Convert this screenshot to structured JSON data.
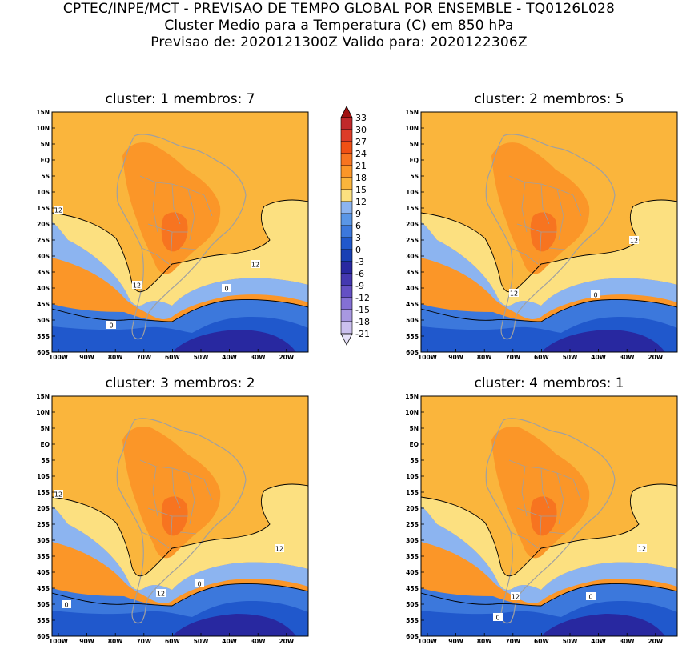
{
  "header": {
    "line1": "CPTEC/INPE/MCT - PREVISAO DE TEMPO GLOBAL POR ENSEMBLE - TQ0126L028",
    "line2": "Cluster Medio para a Temperatura (C) em 850 hPa",
    "line3": "Previsao de: 2020121300Z   Valido para: 2020122306Z"
  },
  "map": {
    "lat_labels": [
      "15N",
      "10N",
      "5N",
      "EQ",
      "5S",
      "10S",
      "15S",
      "20S",
      "25S",
      "30S",
      "35S",
      "40S",
      "45S",
      "50S",
      "55S",
      "60S"
    ],
    "lon_labels": [
      "100W",
      "90W",
      "80W",
      "70W",
      "60W",
      "50W",
      "40W",
      "30W",
      "20W"
    ]
  },
  "panels": [
    {
      "title": "cluster: 1   membros: 7",
      "contour_labels": [
        "12",
        "12",
        "12",
        "0",
        "0"
      ]
    },
    {
      "title": "cluster: 2   membros: 5",
      "contour_labels": [
        "12",
        "12",
        "0"
      ]
    },
    {
      "title": "cluster: 3   membros: 2",
      "contour_labels": [
        "12",
        "12",
        "12",
        "0",
        "0"
      ]
    },
    {
      "title": "cluster: 4   membros: 1",
      "contour_labels": [
        "12",
        "12",
        "0",
        "0"
      ]
    }
  ],
  "colorbar": {
    "levels": [
      "33",
      "30",
      "27",
      "24",
      "21",
      "18",
      "15",
      "12",
      "9",
      "6",
      "3",
      "0",
      "-3",
      "-6",
      "-9",
      "-12",
      "-15",
      "-18",
      "-21"
    ],
    "colors": [
      "#a01010",
      "#c0282a",
      "#dc3c28",
      "#f05014",
      "#f77420",
      "#fb9628",
      "#fab53c",
      "#fce080",
      "#8cb4f0",
      "#5a96e6",
      "#3c78dc",
      "#2058cc",
      "#1840b4",
      "#2828a0",
      "#4438b0",
      "#6450c4",
      "#8470d4",
      "#a898e0",
      "#cbc0ee",
      "#e6e0f8"
    ]
  }
}
